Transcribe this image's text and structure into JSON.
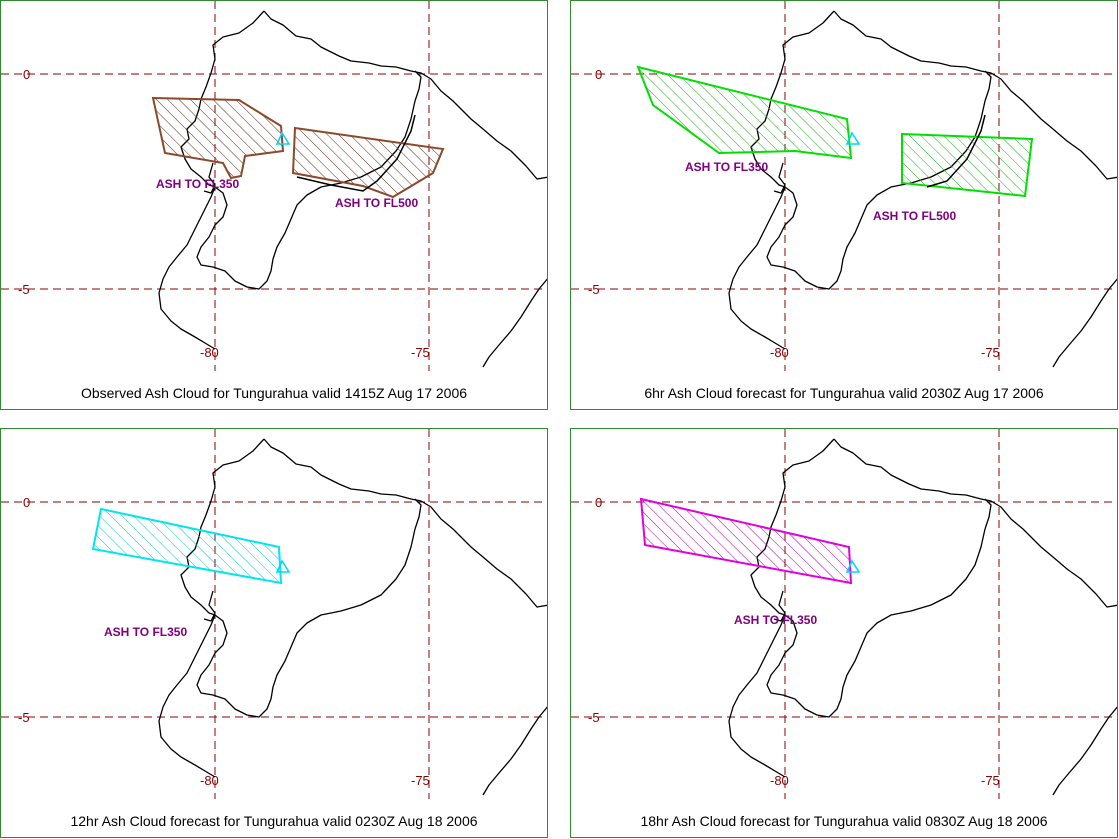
{
  "colors": {
    "observed_cloud": "#8b4a2b",
    "forecast_6hr_cloud": "#00e000",
    "forecast_12hr_cloud": "#00e5ee",
    "forecast_18hr_cloud": "#e000e0",
    "label": "#800080",
    "gridline": "#8b0000",
    "volcano_marker": "#00d8ff"
  },
  "axes": {
    "lat_labels": [
      "0",
      "-5"
    ],
    "lon_labels": [
      "-80",
      "-75"
    ]
  },
  "panels": [
    {
      "caption": "Observed Ash Cloud for Tungurahua valid 1415Z Aug 17 2006",
      "labels": [
        "ASH TO FL350",
        "ASH TO FL500"
      ]
    },
    {
      "caption": "6hr Ash Cloud forecast for Tungurahua valid 2030Z Aug 17 2006",
      "labels": [
        "ASH TO FL350",
        "ASH TO FL500"
      ]
    },
    {
      "caption": "12hr Ash Cloud forecast for Tungurahua valid 0230Z Aug 18 2006",
      "labels": [
        "ASH TO FL350"
      ]
    },
    {
      "caption": "18hr Ash Cloud forecast for Tungurahua valid 0830Z Aug 18 2006",
      "labels": [
        "ASH TO FL350"
      ]
    }
  ]
}
